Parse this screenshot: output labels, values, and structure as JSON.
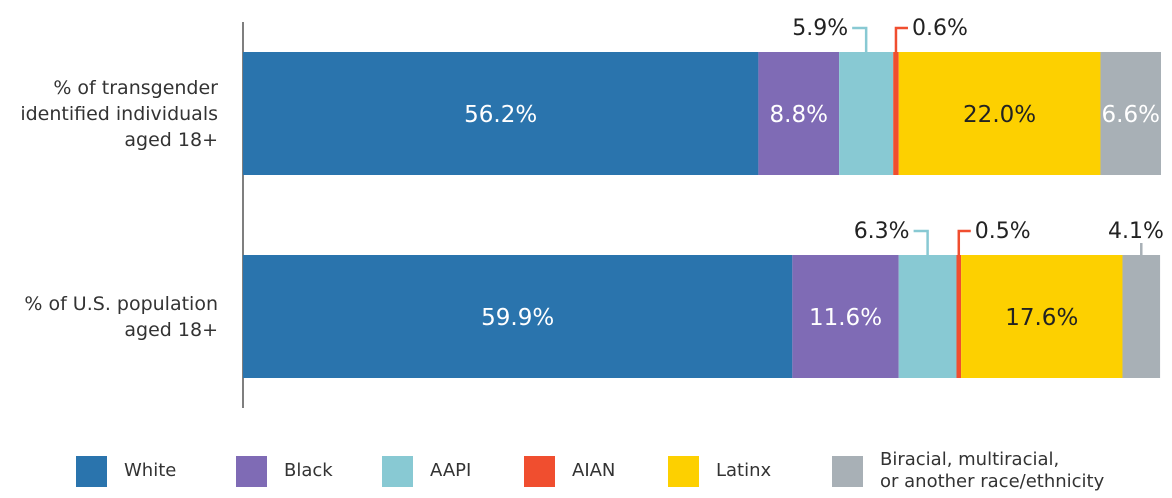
{
  "chart_data": {
    "type": "stacked_barh",
    "categories": [
      "% of transgender\nidentified individuals\naged 18+",
      "% of U.S. population\naged 18+"
    ],
    "series": [
      {
        "name": "White",
        "color": "#2a74ad",
        "values": [
          56.2,
          59.9
        ],
        "value_labels": [
          "56.2%",
          "59.9%"
        ]
      },
      {
        "name": "Black",
        "color": "#7f6bb5",
        "values": [
          8.8,
          11.6
        ],
        "value_labels": [
          "8.8%",
          "11.6%"
        ]
      },
      {
        "name": "AAPI",
        "color": "#88c9d3",
        "values": [
          5.9,
          6.3
        ],
        "value_labels": [
          "5.9%",
          "6.3%"
        ]
      },
      {
        "name": "AIAN",
        "color": "#f04e2f",
        "values": [
          0.6,
          0.5
        ],
        "value_labels": [
          "0.6%",
          "0.5%"
        ]
      },
      {
        "name": "Latinx",
        "color": "#fdd000",
        "values": [
          22.0,
          17.6
        ],
        "value_labels": [
          "22.0%",
          "17.6%"
        ]
      },
      {
        "name": "Biracial, multiracial,\nor another race/ethnicity",
        "color": "#a8b0b6",
        "values": [
          6.6,
          4.1
        ],
        "value_labels": [
          "6.6%",
          "4.1%"
        ]
      }
    ]
  }
}
